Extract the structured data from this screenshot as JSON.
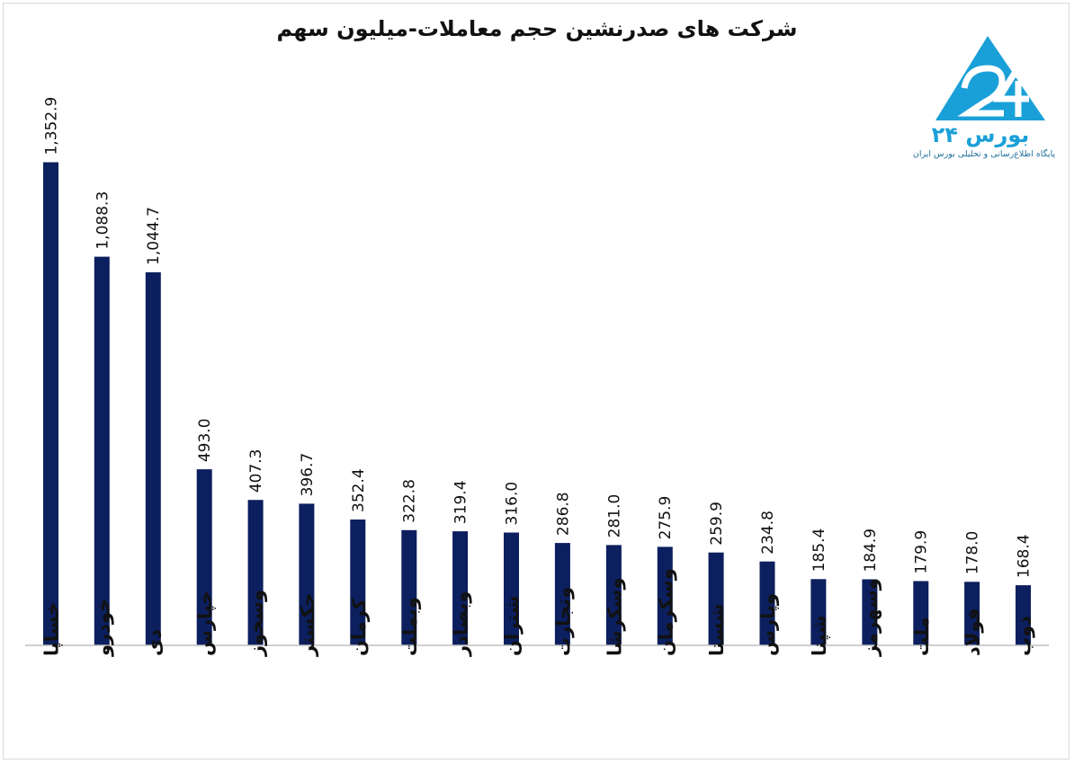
{
  "chart_data": {
    "type": "bar",
    "title": "شرکت های صدرنشین حجم معاملات-میلیون سهم",
    "categories": [
      "خساپا",
      "خودرو",
      "دی",
      "خپارس",
      "وسخوز",
      "حکستر",
      "کرمان",
      "وبملت",
      "وبصادر",
      "شتران",
      "وتجارت",
      "وسکرشا",
      "وسکرمان",
      "شستا",
      "وپارس",
      "شپنا",
      "وسهرمز",
      "ملت",
      "فولاد",
      "ذوب"
    ],
    "values": [
      1352.9,
      1088.3,
      1044.7,
      493.0,
      407.3,
      396.7,
      352.4,
      322.8,
      319.4,
      316.0,
      286.8,
      281.0,
      275.9,
      259.9,
      234.8,
      185.4,
      184.9,
      179.9,
      178.0,
      168.4
    ],
    "value_labels": [
      "1,352.9",
      "1,088.3",
      "1,044.7",
      "493.0",
      "407.3",
      "396.7",
      "352.4",
      "322.8",
      "319.4",
      "316.0",
      "286.8",
      "281.0",
      "275.9",
      "259.9",
      "234.8",
      "185.4",
      "184.9",
      "179.9",
      "178.0",
      "168.4"
    ],
    "ylim": [
      0,
      1500
    ],
    "xlabel": "",
    "ylabel": "",
    "grid": false,
    "bar_color": "#0c1f5e"
  },
  "logo": {
    "word": "بورس ۲۴",
    "tagline": "پایگاه اطلاع‌رسانی و تحلیلی بورس ایران",
    "color": "#1aa0d8"
  }
}
